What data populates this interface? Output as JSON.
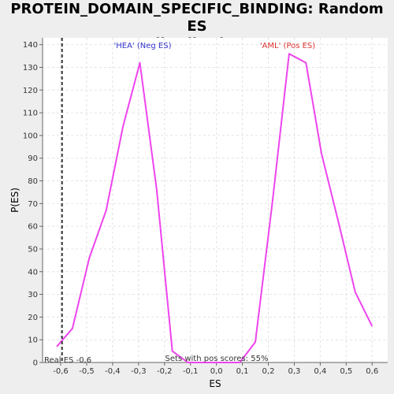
{
  "chart_data": {
    "type": "line",
    "title_lines": [
      "PROTEIN_DOMAIN_SPECIFIC_BINDING: Random ES",
      "distribution"
    ],
    "xlabel": "ES",
    "ylabel": "P(ES)",
    "xlim": [
      -0.67,
      0.66
    ],
    "ylim": [
      0,
      143
    ],
    "xticks": [
      -0.6,
      -0.5,
      -0.4,
      -0.3,
      -0.2,
      -0.1,
      0.0,
      0.1,
      0.2,
      0.3,
      0.4,
      0.5,
      0.6
    ],
    "xtick_labels": [
      "-0,6",
      "-0,5",
      "-0,4",
      "-0,3",
      "-0,2",
      "-0,1",
      "0,0",
      "0,1",
      "0,2",
      "0,3",
      "0,4",
      "0,5",
      "0,6"
    ],
    "yticks": [
      0,
      10,
      20,
      30,
      40,
      50,
      60,
      70,
      80,
      90,
      100,
      110,
      120,
      130,
      140
    ],
    "grid": true,
    "line_color": "#ee44ee",
    "series": [
      {
        "x": [
          -0.615,
          -0.555,
          -0.49,
          -0.425,
          -0.36,
          -0.295,
          -0.23,
          -0.17,
          -0.11,
          -0.045,
          0.02,
          0.09,
          0.15,
          0.215,
          0.28,
          0.345,
          0.405,
          0.47,
          0.535,
          0.6
        ],
        "y": [
          7,
          15,
          46,
          67,
          104,
          132,
          76,
          5,
          0,
          0,
          0,
          0,
          9,
          70,
          136,
          132,
          92,
          62,
          31,
          16
        ]
      }
    ],
    "real_es": {
      "x": -0.595,
      "label": "Real ES -0,6",
      "color": "#333333"
    },
    "annotations": {
      "neg_label": "'HEA' (Neg ES)",
      "neg_color": "#3333cc",
      "pos_label": "'AML' (Pos ES)",
      "pos_color": "#dd3333",
      "pos_scores": "Sets with pos scores: 55%"
    }
  }
}
